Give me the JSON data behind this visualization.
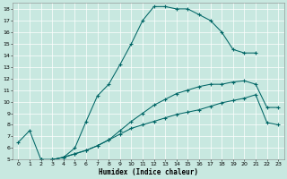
{
  "xlabel": "Humidex (Indice chaleur)",
  "xlim": [
    -0.5,
    23.5
  ],
  "ylim": [
    5,
    18.5
  ],
  "xticks": [
    0,
    1,
    2,
    3,
    4,
    5,
    6,
    7,
    8,
    9,
    10,
    11,
    12,
    13,
    14,
    15,
    16,
    17,
    18,
    19,
    20,
    21,
    22,
    23
  ],
  "yticks": [
    5,
    6,
    7,
    8,
    9,
    10,
    11,
    12,
    13,
    14,
    15,
    16,
    17,
    18
  ],
  "bg_color": "#c8e8e0",
  "line_color": "#006666",
  "curve1_x": [
    2,
    3,
    4,
    5,
    6,
    7,
    8,
    9,
    10,
    11,
    12,
    13,
    14,
    15,
    16,
    17,
    18,
    19,
    20,
    21,
    22,
    23
  ],
  "curve1_y": [
    5.0,
    5.0,
    5.2,
    5.5,
    5.8,
    6.2,
    6.7,
    7.2,
    7.7,
    8.0,
    8.3,
    8.6,
    8.9,
    9.1,
    9.3,
    9.6,
    9.9,
    10.1,
    10.3,
    10.6,
    8.2,
    8.0
  ],
  "curve2_x": [
    2,
    3,
    4,
    5,
    6,
    7,
    8,
    9,
    10,
    11,
    12,
    13,
    14,
    15,
    16,
    17,
    18,
    19,
    20,
    21,
    22,
    23
  ],
  "curve2_y": [
    5.0,
    5.0,
    5.2,
    5.5,
    5.8,
    6.2,
    6.7,
    7.5,
    8.3,
    9.0,
    9.7,
    10.2,
    10.7,
    11.0,
    11.3,
    11.5,
    11.5,
    11.7,
    11.8,
    11.5,
    9.5,
    9.5
  ],
  "curve3_x": [
    0,
    1,
    2,
    3,
    4,
    5,
    6,
    7,
    8,
    9,
    10,
    11,
    12,
    13,
    14,
    15,
    16,
    17,
    18,
    19,
    20,
    21
  ],
  "curve3_y": [
    6.5,
    7.5,
    5.0,
    5.0,
    5.2,
    6.0,
    8.3,
    10.5,
    11.5,
    13.2,
    15.0,
    17.0,
    18.2,
    18.2,
    18.0,
    18.0,
    17.5,
    17.0,
    16.0,
    14.5,
    14.2,
    14.2
  ]
}
